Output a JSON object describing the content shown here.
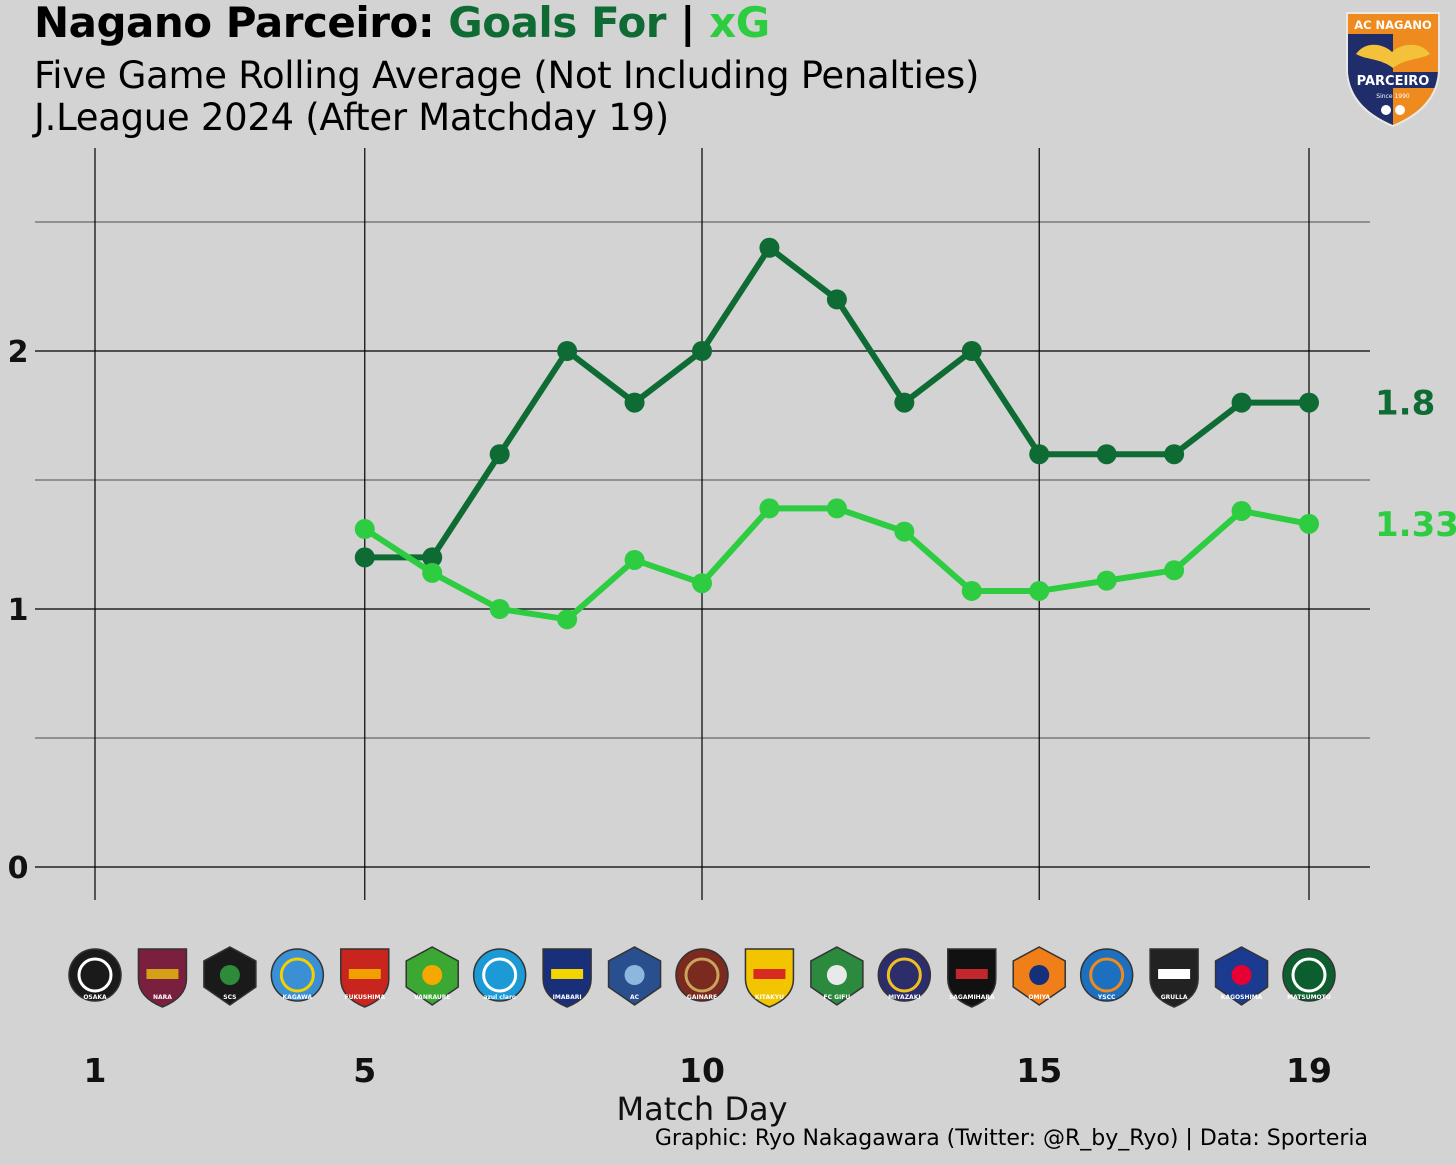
{
  "header": {
    "title_team": "Nagano Parceiro:",
    "title_goals": "Goals For",
    "title_sep": "|",
    "title_xg": "xG",
    "subtitle1": "Five Game Rolling Average (Not Including Penalties)",
    "subtitle2": "J.League 2024 (After Matchday 19)"
  },
  "crest": {
    "line1": "AC NAGANO",
    "line2": "PARCEIRO",
    "line3": "Since 1990"
  },
  "footer": {
    "credit": "Graphic: Ryo Nakagawara (Twitter: @R_by_Ryo) | Data: Sporteria"
  },
  "opponents": [
    {
      "label": "OSAKA",
      "color": "#1a1a1a",
      "accent": "#ffffff"
    },
    {
      "label": "NARA",
      "color": "#7a1f3d",
      "accent": "#d4a017"
    },
    {
      "label": "SCS",
      "color": "#1a1a1a",
      "accent": "#2e8b3a"
    },
    {
      "label": "KAGAWA",
      "color": "#3b8fd4",
      "accent": "#f3d000"
    },
    {
      "label": "FUKUSHIMA",
      "color": "#c8251f",
      "accent": "#f0a000"
    },
    {
      "label": "VANRAURE",
      "color": "#3aa832",
      "accent": "#f6a800"
    },
    {
      "label": "azul claro",
      "color": "#1c9ad6",
      "accent": "#ffffff"
    },
    {
      "label": "IMABARI",
      "color": "#1a2f7a",
      "accent": "#f2d400"
    },
    {
      "label": "AC",
      "color": "#2a4f8f",
      "accent": "#8fb7dd"
    },
    {
      "label": "GAINARE",
      "color": "#7a2a1e",
      "accent": "#c9a45a"
    },
    {
      "label": "KITAKYU",
      "color": "#f2c500",
      "accent": "#d62b1e"
    },
    {
      "label": "FC GIFU",
      "color": "#2b8a3e",
      "accent": "#e9e9e9"
    },
    {
      "label": "MIYAZAKI",
      "color": "#2c2d6b",
      "accent": "#f0c020"
    },
    {
      "label": "SAGAMIHARA",
      "color": "#111111",
      "accent": "#c1272d"
    },
    {
      "label": "OMIYA",
      "color": "#f07f19",
      "accent": "#14307a"
    },
    {
      "label": "YSCC",
      "color": "#1d6fc0",
      "accent": "#f08a1a"
    },
    {
      "label": "GRULLA",
      "color": "#222222",
      "accent": "#ffffff"
    },
    {
      "label": "KAGOSHIMA",
      "color": "#1a3b8f",
      "accent": "#e60033"
    },
    {
      "label": "MATSUMOTO",
      "color": "#0c5e2e",
      "accent": "#ffffff"
    }
  ],
  "colors": {
    "goals_for": "#0e6b33",
    "xg": "#2ecc40",
    "background": "#d3d3d3",
    "grid": "#000000"
  },
  "chart_data": {
    "type": "line",
    "title": "Nagano Parceiro: Goals For | xG",
    "subtitle": "Five Game Rolling Average (Not Including Penalties)",
    "xlabel": "Match Day",
    "ylabel": "",
    "xlim": [
      0.5,
      19.9
    ],
    "ylim": [
      -0.13,
      2.75
    ],
    "x_ticks": [
      1,
      5,
      10,
      15,
      19
    ],
    "x_tick_labels": [
      "1",
      "5",
      "10",
      "15",
      "19"
    ],
    "y_ticks": [
      0,
      1,
      2
    ],
    "y_tick_labels": [
      "0",
      "1",
      "2"
    ],
    "y_minor_gridlines": [
      0.5,
      1.5,
      2.5
    ],
    "grid": true,
    "x": [
      5,
      6,
      7,
      8,
      9,
      10,
      11,
      12,
      13,
      14,
      15,
      16,
      17,
      18,
      19
    ],
    "series": [
      {
        "values": [
          1.2,
          1.2,
          1.6,
          2.0,
          1.8,
          2.0,
          2.4,
          2.2,
          1.8,
          2.0,
          1.6,
          1.6,
          1.6,
          1.8,
          1.8
        ],
        "end_label": "1.8",
        "color": "#0e6b33"
      },
      {
        "values": [
          1.31,
          1.14,
          1.0,
          0.96,
          1.19,
          1.1,
          1.39,
          1.39,
          1.3,
          1.07,
          1.07,
          1.11,
          1.15,
          1.38,
          1.33
        ],
        "end_label": "1.33",
        "color": "#2ecc40"
      }
    ]
  }
}
